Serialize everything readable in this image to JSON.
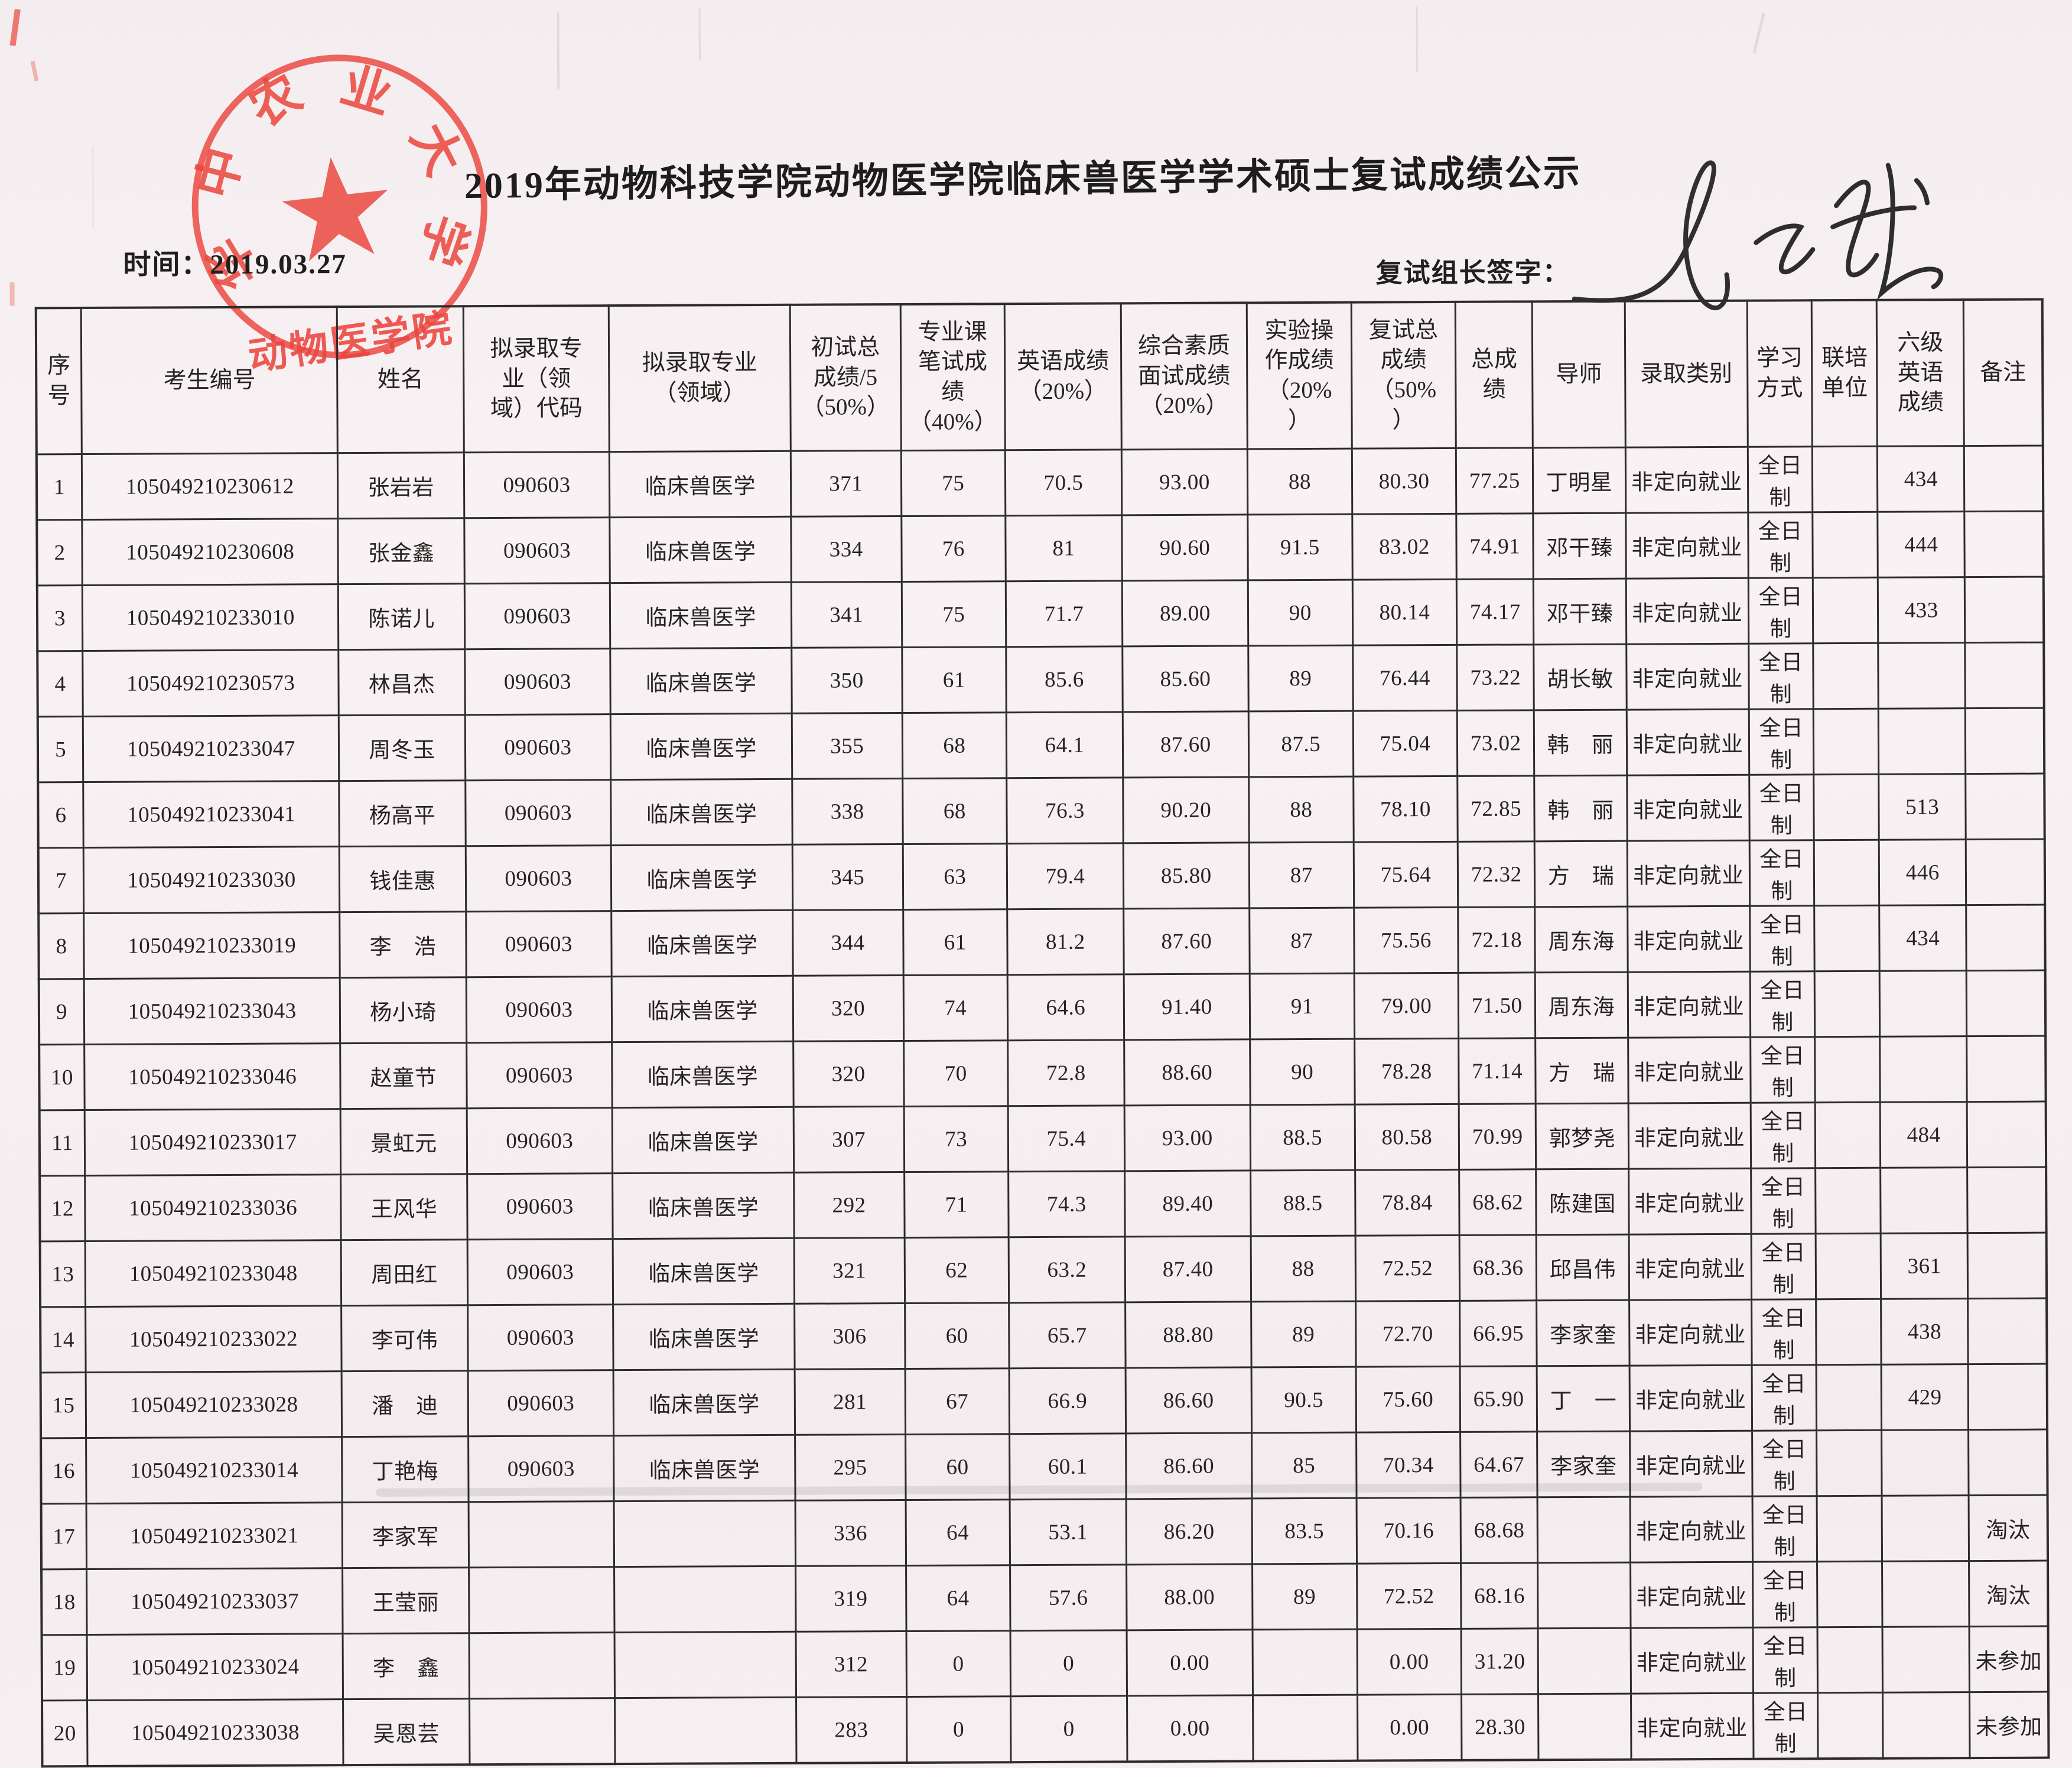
{
  "document": {
    "title": "2019年动物科技学院动物医学院临床兽医学学术硕士复试成绩公示",
    "date_label": "时间：",
    "date_value": "2019.03.27",
    "signature_label": "复试组长签字：",
    "stamp": {
      "ring_chars": [
        "华",
        "中",
        "农",
        "业",
        "大",
        "学"
      ],
      "bottom_text": "动物医学院",
      "color": "#e9372d"
    }
  },
  "table": {
    "headers": [
      "序\n号",
      "考生编号",
      "姓名",
      "拟录取专\n业（领\n域）代码",
      "拟录取专业\n（领域）",
      "初试总\n成绩/5\n（50%）",
      "专业课\n笔试成\n绩\n（40%）",
      "英语成绩\n（20%）",
      "综合素质\n面试成绩\n（20%）",
      "实验操\n作成绩\n（20%\n）",
      "复试总\n成绩\n（50%\n）",
      "总成\n绩",
      "导师",
      "录取类别",
      "学习\n方式",
      "联培\n单位",
      "六级\n英语\n成绩",
      "备注"
    ],
    "rows": [
      [
        "1",
        "105049210230612",
        "张岩岩",
        "090603",
        "临床兽医学",
        "371",
        "75",
        "70.5",
        "93.00",
        "88",
        "80.30",
        "77.25",
        "丁明星",
        "非定向就业",
        "全日制",
        "",
        "434",
        ""
      ],
      [
        "2",
        "105049210230608",
        "张金鑫",
        "090603",
        "临床兽医学",
        "334",
        "76",
        "81",
        "90.60",
        "91.5",
        "83.02",
        "74.91",
        "邓干臻",
        "非定向就业",
        "全日制",
        "",
        "444",
        ""
      ],
      [
        "3",
        "105049210233010",
        "陈诺儿",
        "090603",
        "临床兽医学",
        "341",
        "75",
        "71.7",
        "89.00",
        "90",
        "80.14",
        "74.17",
        "邓干臻",
        "非定向就业",
        "全日制",
        "",
        "433",
        ""
      ],
      [
        "4",
        "105049210230573",
        "林昌杰",
        "090603",
        "临床兽医学",
        "350",
        "61",
        "85.6",
        "85.60",
        "89",
        "76.44",
        "73.22",
        "胡长敏",
        "非定向就业",
        "全日制",
        "",
        "",
        ""
      ],
      [
        "5",
        "105049210233047",
        "周冬玉",
        "090603",
        "临床兽医学",
        "355",
        "68",
        "64.1",
        "87.60",
        "87.5",
        "75.04",
        "73.02",
        "韩　丽",
        "非定向就业",
        "全日制",
        "",
        "",
        ""
      ],
      [
        "6",
        "105049210233041",
        "杨高平",
        "090603",
        "临床兽医学",
        "338",
        "68",
        "76.3",
        "90.20",
        "88",
        "78.10",
        "72.85",
        "韩　丽",
        "非定向就业",
        "全日制",
        "",
        "513",
        ""
      ],
      [
        "7",
        "105049210233030",
        "钱佳惠",
        "090603",
        "临床兽医学",
        "345",
        "63",
        "79.4",
        "85.80",
        "87",
        "75.64",
        "72.32",
        "方　瑞",
        "非定向就业",
        "全日制",
        "",
        "446",
        ""
      ],
      [
        "8",
        "105049210233019",
        "李　浩",
        "090603",
        "临床兽医学",
        "344",
        "61",
        "81.2",
        "87.60",
        "87",
        "75.56",
        "72.18",
        "周东海",
        "非定向就业",
        "全日制",
        "",
        "434",
        ""
      ],
      [
        "9",
        "105049210233043",
        "杨小琦",
        "090603",
        "临床兽医学",
        "320",
        "74",
        "64.6",
        "91.40",
        "91",
        "79.00",
        "71.50",
        "周东海",
        "非定向就业",
        "全日制",
        "",
        "",
        ""
      ],
      [
        "10",
        "105049210233046",
        "赵童节",
        "090603",
        "临床兽医学",
        "320",
        "70",
        "72.8",
        "88.60",
        "90",
        "78.28",
        "71.14",
        "方　瑞",
        "非定向就业",
        "全日制",
        "",
        "",
        ""
      ],
      [
        "11",
        "105049210233017",
        "景虹元",
        "090603",
        "临床兽医学",
        "307",
        "73",
        "75.4",
        "93.00",
        "88.5",
        "80.58",
        "70.99",
        "郭梦尧",
        "非定向就业",
        "全日制",
        "",
        "484",
        ""
      ],
      [
        "12",
        "105049210233036",
        "王风华",
        "090603",
        "临床兽医学",
        "292",
        "71",
        "74.3",
        "89.40",
        "88.5",
        "78.84",
        "68.62",
        "陈建国",
        "非定向就业",
        "全日制",
        "",
        "",
        ""
      ],
      [
        "13",
        "105049210233048",
        "周田红",
        "090603",
        "临床兽医学",
        "321",
        "62",
        "63.2",
        "87.40",
        "88",
        "72.52",
        "68.36",
        "邱昌伟",
        "非定向就业",
        "全日制",
        "",
        "361",
        ""
      ],
      [
        "14",
        "105049210233022",
        "李可伟",
        "090603",
        "临床兽医学",
        "306",
        "60",
        "65.7",
        "88.80",
        "89",
        "72.70",
        "66.95",
        "李家奎",
        "非定向就业",
        "全日制",
        "",
        "438",
        ""
      ],
      [
        "15",
        "105049210233028",
        "潘　迪",
        "090603",
        "临床兽医学",
        "281",
        "67",
        "66.9",
        "86.60",
        "90.5",
        "75.60",
        "65.90",
        "丁　一",
        "非定向就业",
        "全日制",
        "",
        "429",
        ""
      ],
      [
        "16",
        "105049210233014",
        "丁艳梅",
        "090603",
        "临床兽医学",
        "295",
        "60",
        "60.1",
        "86.60",
        "85",
        "70.34",
        "64.67",
        "李家奎",
        "非定向就业",
        "全日制",
        "",
        "",
        ""
      ],
      [
        "17",
        "105049210233021",
        "李家军",
        "",
        "",
        "336",
        "64",
        "53.1",
        "86.20",
        "83.5",
        "70.16",
        "68.68",
        "",
        "非定向就业",
        "全日制",
        "",
        "",
        "淘汰"
      ],
      [
        "18",
        "105049210233037",
        "王莹丽",
        "",
        "",
        "319",
        "64",
        "57.6",
        "88.00",
        "89",
        "72.52",
        "68.16",
        "",
        "非定向就业",
        "全日制",
        "",
        "",
        "淘汰"
      ],
      [
        "19",
        "105049210233024",
        "李　鑫",
        "",
        "",
        "312",
        "0",
        "0",
        "0.00",
        "",
        "0.00",
        "31.20",
        "",
        "非定向就业",
        "全日制",
        "",
        "",
        "未参加"
      ],
      [
        "20",
        "105049210233038",
        "吴恩芸",
        "",
        "",
        "283",
        "0",
        "0",
        "0.00",
        "",
        "0.00",
        "28.30",
        "",
        "非定向就业",
        "全日制",
        "",
        "",
        "未参加"
      ]
    ]
  }
}
